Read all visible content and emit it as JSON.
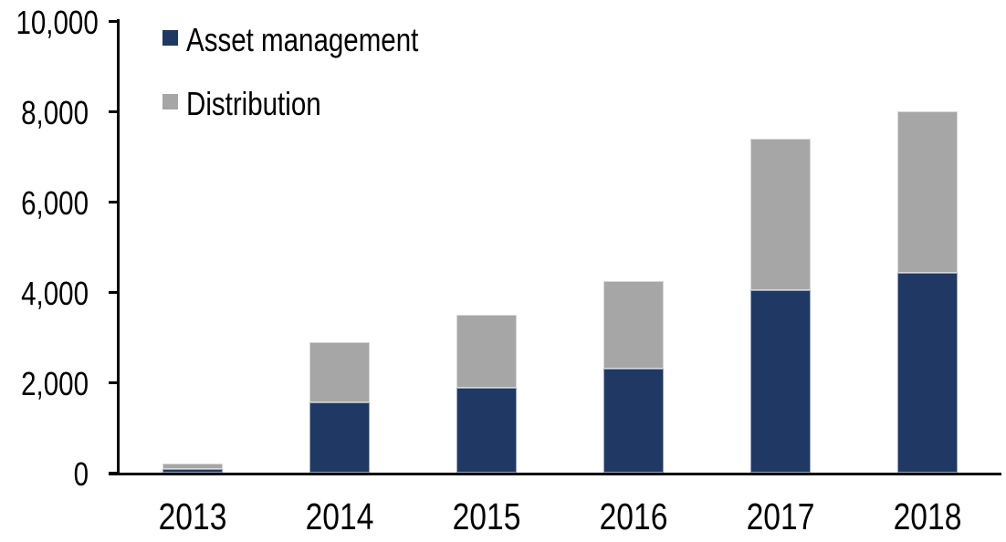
{
  "chart_data": {
    "type": "bar",
    "stacked": true,
    "title": "",
    "xlabel": "",
    "ylabel": "",
    "categories": [
      "2013",
      "2014",
      "2015",
      "2016",
      "2017",
      "2018"
    ],
    "series": [
      {
        "name": "Asset management",
        "color": "#1F3864",
        "values": [
          80,
          1550,
          1880,
          2310,
          4040,
          4420
        ]
      },
      {
        "name": "Distribution",
        "color": "#A6A6A6",
        "values": [
          120,
          1330,
          1620,
          1940,
          3350,
          3590
        ]
      }
    ],
    "totals": [
      200,
      2880,
      3500,
      4250,
      7390,
      8010
    ],
    "ylim": [
      0,
      10000
    ],
    "yticks": [
      0,
      2000,
      4000,
      6000,
      8000,
      10000
    ],
    "ytick_labels": [
      "0",
      "2,000",
      "4,000",
      "6,000",
      "8,000",
      "10,000"
    ],
    "grid": false,
    "legend_position": "top-left"
  },
  "colors": {
    "asset_management": "#1F3864",
    "distribution": "#A6A6A6",
    "axis": "#000000",
    "background": "#FFFFFF"
  }
}
